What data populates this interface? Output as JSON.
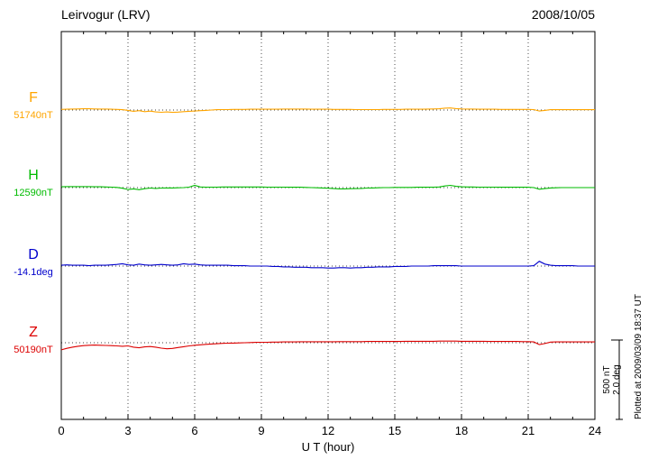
{
  "header": {
    "title": "Leirvogur (LRV)",
    "date": "2008/10/05"
  },
  "chart_data": {
    "type": "line",
    "title": "Leirvogur (LRV)",
    "date": "2008/10/05",
    "xlabel": "U T (hour)",
    "x_range": [
      0,
      24
    ],
    "x_ticks": [
      0,
      3,
      6,
      9,
      12,
      15,
      18,
      21,
      24
    ],
    "x_step_hours": 0.25,
    "grid": "dotted vertical gridlines every 3 hours; dotted horizontal baseline per trace",
    "legend_position": "left margin labels",
    "series": [
      {
        "name": "F",
        "label": "F",
        "baseline_label": "51740nT",
        "baseline_value": 51740,
        "units": "nT",
        "color": "#FFA500",
        "values_are": "offsets from baseline in nT",
        "values": [
          4,
          5,
          6,
          7,
          8,
          8,
          7,
          6,
          6,
          5,
          4,
          2,
          -2,
          -8,
          -4,
          -10,
          -7,
          -12,
          -14,
          -12,
          -15,
          -13,
          -10,
          -8,
          -6,
          -4,
          -2,
          0,
          2,
          3,
          3,
          4,
          4,
          4,
          5,
          5,
          5,
          5,
          5,
          5,
          6,
          6,
          6,
          6,
          6,
          5,
          5,
          5,
          5,
          4,
          4,
          4,
          4,
          3,
          3,
          3,
          3,
          3,
          4,
          4,
          4,
          4,
          5,
          5,
          5,
          5,
          6,
          7,
          8,
          12,
          13,
          9,
          7,
          6,
          6,
          5,
          5,
          5,
          5,
          4,
          4,
          4,
          4,
          4,
          4,
          3,
          -6,
          -2,
          2,
          2,
          2,
          2,
          2,
          2,
          2,
          2,
          2
        ]
      },
      {
        "name": "H",
        "label": "H",
        "baseline_label": "12590nT",
        "baseline_value": 12590,
        "units": "nT",
        "color": "#00BB00",
        "values_are": "offsets from baseline in nT",
        "values": [
          5,
          6,
          6,
          6,
          6,
          6,
          5,
          5,
          4,
          3,
          1,
          -4,
          -12,
          -8,
          -13,
          -7,
          -3,
          -5,
          -3,
          -2,
          -2,
          -1,
          0,
          3,
          14,
          4,
          3,
          3,
          3,
          4,
          4,
          4,
          4,
          4,
          4,
          4,
          4,
          3,
          3,
          3,
          3,
          2,
          2,
          2,
          1,
          0,
          -1,
          -2,
          -4,
          -6,
          -8,
          -8,
          -7,
          -6,
          -5,
          -3,
          -2,
          -1,
          0,
          0,
          1,
          1,
          1,
          1,
          2,
          2,
          2,
          3,
          4,
          10,
          14,
          8,
          5,
          4,
          4,
          3,
          3,
          3,
          3,
          2,
          2,
          2,
          2,
          2,
          2,
          0,
          -10,
          -6,
          -2,
          -1,
          0,
          0,
          0,
          0,
          0,
          0,
          0
        ]
      },
      {
        "name": "D",
        "label": "D",
        "baseline_label": "-14.1deg",
        "baseline_value": -14.1,
        "units": "deg",
        "color": "#0000CC",
        "values_are": "offsets from baseline in deg",
        "values": [
          0.02,
          0.03,
          0.02,
          0.02,
          0.02,
          0.01,
          0.02,
          0.02,
          0.02,
          0.03,
          0.04,
          0.06,
          0.03,
          0.02,
          0.05,
          0.03,
          0.02,
          0.03,
          0.04,
          0.03,
          0.02,
          0.03,
          0.06,
          0.04,
          0.05,
          0.03,
          0.02,
          0.02,
          0.02,
          0.02,
          0.02,
          0.01,
          0.01,
          0.01,
          0,
          0,
          0,
          0,
          -0.01,
          -0.01,
          -0.02,
          -0.02,
          -0.03,
          -0.03,
          -0.03,
          -0.04,
          -0.04,
          -0.04,
          -0.05,
          -0.05,
          -0.04,
          -0.04,
          -0.05,
          -0.04,
          -0.04,
          -0.03,
          -0.03,
          -0.02,
          -0.02,
          -0.02,
          -0.01,
          -0.01,
          -0.01,
          0,
          0,
          0,
          0,
          0.01,
          0.01,
          0.01,
          0.01,
          0.01,
          0,
          0,
          0,
          0,
          0,
          0,
          0,
          0,
          0,
          0,
          0,
          0,
          0,
          0.01,
          0.12,
          0.05,
          0.02,
          0.01,
          0.01,
          0.01,
          0.01,
          0,
          0,
          0,
          0
        ]
      },
      {
        "name": "Z",
        "label": "Z",
        "baseline_label": "50190nT",
        "baseline_value": 50190,
        "units": "nT",
        "color": "#DD0000",
        "values_are": "offsets from baseline in nT",
        "values": [
          -45,
          -35,
          -28,
          -22,
          -18,
          -16,
          -15,
          -16,
          -17,
          -18,
          -20,
          -22,
          -20,
          -28,
          -32,
          -26,
          -24,
          -28,
          -34,
          -38,
          -36,
          -30,
          -25,
          -20,
          -16,
          -13,
          -10,
          -8,
          -6,
          -4,
          -3,
          -2,
          -1,
          0,
          1,
          2,
          3,
          3,
          4,
          4,
          5,
          5,
          5,
          6,
          6,
          6,
          6,
          6,
          6,
          6,
          7,
          7,
          7,
          7,
          7,
          8,
          8,
          8,
          8,
          8,
          8,
          8,
          9,
          9,
          9,
          9,
          9,
          9,
          10,
          10,
          10,
          10,
          9,
          9,
          9,
          9,
          9,
          8,
          8,
          8,
          8,
          8,
          8,
          7,
          7,
          5,
          -12,
          -5,
          4,
          5,
          5,
          5,
          5,
          5,
          5,
          5,
          5
        ]
      }
    ],
    "scale_bar": {
      "nt_label": "500 nT",
      "deg_label": "2.0 deg",
      "nt_per_bar": 500,
      "deg_per_bar": 2
    },
    "footer_note": "Plotted at 2009/03/09 18:37 UT"
  }
}
